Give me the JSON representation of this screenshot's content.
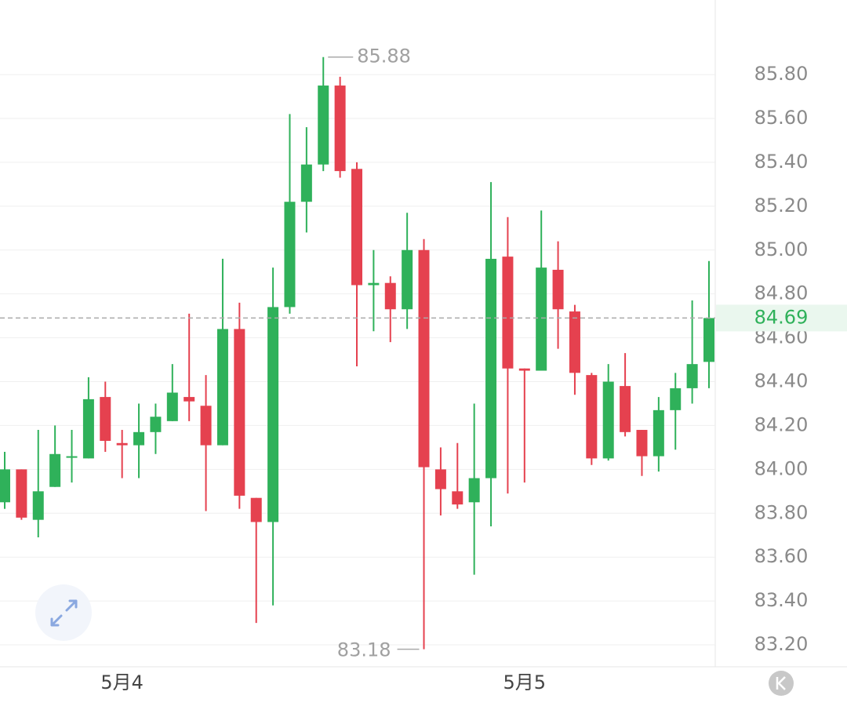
{
  "chart_data": {
    "type": "candlestick",
    "categories": [
      null,
      null,
      null,
      null,
      null,
      null,
      null,
      "5月4",
      null,
      null,
      null,
      null,
      null,
      null,
      null,
      null,
      null,
      null,
      null,
      null,
      null,
      null,
      null,
      null,
      null,
      null,
      null,
      null,
      null,
      null,
      null,
      "5月5",
      null,
      null,
      null,
      null,
      null,
      null,
      null,
      null,
      null,
      null,
      null
    ],
    "open": [
      83.85,
      84.0,
      83.77,
      83.92,
      84.06,
      84.05,
      84.33,
      84.12,
      84.11,
      84.17,
      84.22,
      84.33,
      84.29,
      84.11,
      84.64,
      83.87,
      83.76,
      84.74,
      85.22,
      85.39,
      85.75,
      85.37,
      84.84,
      84.85,
      84.73,
      85.0,
      84.0,
      83.9,
      83.85,
      83.96,
      84.97,
      84.46,
      84.45,
      84.91,
      84.72,
      84.43,
      84.05,
      84.38,
      84.18,
      84.06,
      84.27,
      84.37,
      84.49
    ],
    "high": [
      84.08,
      84.0,
      84.18,
      84.2,
      84.18,
      84.42,
      84.4,
      84.18,
      84.3,
      84.3,
      84.48,
      84.71,
      84.43,
      84.96,
      84.76,
      83.87,
      84.92,
      85.62,
      85.56,
      85.88,
      85.79,
      85.4,
      85.0,
      84.88,
      85.17,
      85.05,
      84.1,
      84.12,
      84.3,
      85.31,
      85.15,
      84.46,
      85.18,
      85.04,
      84.75,
      84.44,
      84.48,
      84.53,
      84.18,
      84.33,
      84.44,
      84.77,
      84.95
    ],
    "low": [
      83.82,
      83.77,
      83.69,
      83.92,
      83.94,
      84.05,
      84.08,
      83.96,
      83.96,
      84.07,
      84.22,
      84.22,
      83.81,
      84.11,
      83.82,
      83.3,
      83.38,
      84.71,
      85.08,
      85.36,
      85.33,
      84.47,
      84.63,
      84.58,
      84.64,
      83.18,
      83.79,
      83.82,
      83.52,
      83.74,
      83.89,
      83.94,
      84.45,
      84.55,
      84.34,
      84.02,
      84.04,
      84.15,
      83.97,
      83.99,
      84.09,
      84.3,
      84.37
    ],
    "close": [
      84.0,
      83.78,
      83.9,
      84.07,
      84.06,
      84.32,
      84.13,
      84.11,
      84.17,
      84.24,
      84.35,
      84.31,
      84.11,
      84.64,
      83.88,
      83.76,
      84.74,
      85.22,
      85.39,
      85.75,
      85.36,
      84.84,
      84.85,
      84.73,
      85.0,
      84.01,
      83.91,
      83.84,
      83.96,
      84.96,
      84.46,
      84.45,
      84.92,
      84.73,
      84.44,
      84.05,
      84.4,
      84.17,
      84.06,
      84.27,
      84.37,
      84.48,
      84.69
    ],
    "up_color": "#2fb15a",
    "down_color": "#e5414f",
    "ylim": [
      83.1,
      86.14
    ],
    "yticks": [
      {
        "value": 83.2,
        "label": "83.20"
      },
      {
        "value": 83.4,
        "label": "83.40"
      },
      {
        "value": 83.6,
        "label": "83.60"
      },
      {
        "value": 83.8,
        "label": "83.80"
      },
      {
        "value": 84.0,
        "label": "84.00"
      },
      {
        "value": 84.2,
        "label": "84.20"
      },
      {
        "value": 84.4,
        "label": "84.40"
      },
      {
        "value": 84.6,
        "label": "84.60"
      },
      {
        "value": 84.8,
        "label": "84.80"
      },
      {
        "value": 85.0,
        "label": "85.00"
      },
      {
        "value": 85.2,
        "label": "85.20"
      },
      {
        "value": 85.4,
        "label": "85.40"
      },
      {
        "value": 85.6,
        "label": "85.60"
      },
      {
        "value": 85.8,
        "label": "85.80"
      }
    ],
    "grid": true,
    "high_marker": 85.88,
    "low_marker": 83.18,
    "last_price": 84.69
  }
}
